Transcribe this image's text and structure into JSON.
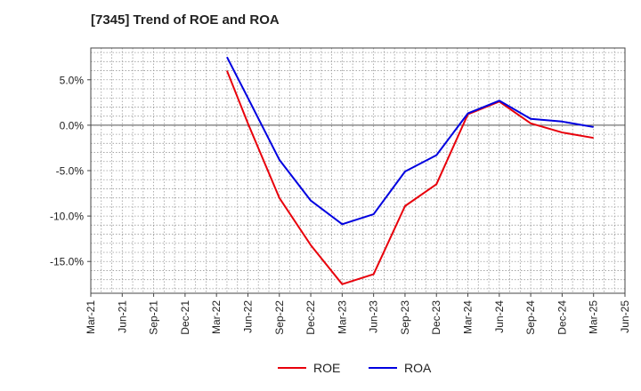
{
  "chart_data": {
    "type": "line",
    "title": "[7345]  Trend of ROE and ROA",
    "xlabel": "",
    "ylabel": "",
    "x_tick_labels": [
      "Mar-21",
      "Jun-21",
      "Sep-21",
      "Dec-21",
      "Mar-22",
      "Jun-22",
      "Sep-22",
      "Dec-22",
      "Mar-23",
      "Jun-23",
      "Sep-23",
      "Dec-23",
      "Mar-24",
      "Jun-24",
      "Sep-24",
      "Dec-24",
      "Mar-25",
      "Jun-25"
    ],
    "y_tick_labels": [
      "5.0%",
      "0.0%",
      "-5.0%",
      "-10.0%",
      "-15.0%"
    ],
    "y_ticks": [
      5,
      0,
      -5,
      -10,
      -15
    ],
    "ylim": [
      -18.5,
      8.5
    ],
    "grid": true,
    "legend_position": "bottom-center",
    "x": [
      "Apr-22",
      "Jun-22",
      "Sep-22",
      "Dec-22",
      "Mar-23",
      "Jun-23",
      "Sep-23",
      "Dec-23",
      "Mar-24",
      "Jun-24",
      "Sep-24",
      "Dec-24",
      "Mar-25"
    ],
    "series": [
      {
        "name": "ROE",
        "color": "#e8000b",
        "values": [
          6.0,
          0.2,
          -8.0,
          -13.2,
          -17.5,
          -16.4,
          -8.9,
          -6.5,
          1.2,
          2.6,
          0.2,
          -0.8,
          -1.4
        ]
      },
      {
        "name": "ROA",
        "color": "#0000e0",
        "values": [
          7.5,
          3.0,
          -3.8,
          -8.3,
          -10.9,
          -9.8,
          -5.1,
          -3.3,
          1.3,
          2.7,
          0.7,
          0.4,
          -0.2
        ]
      }
    ]
  }
}
